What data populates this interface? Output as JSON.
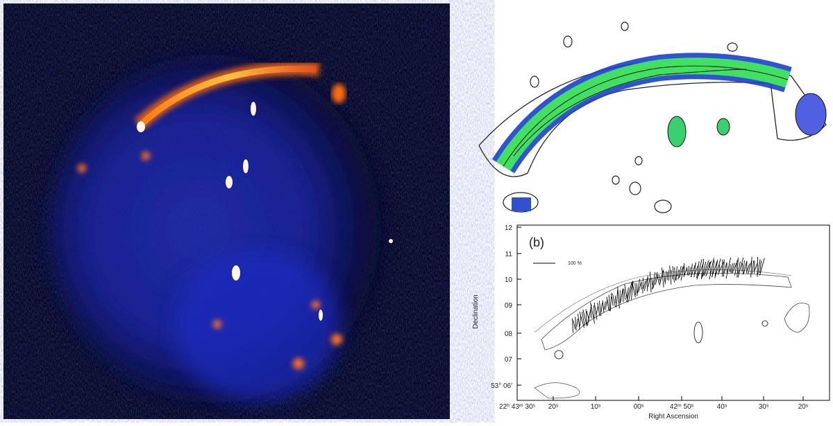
{
  "panels": {
    "b": {
      "label": "(b)",
      "scale_label": "100 %",
      "y_axis_label": "Declination",
      "x_axis_label": "Right Ascension",
      "yticks": [
        "12",
        "11",
        "10",
        "09",
        "08",
        "07",
        "53° 06′"
      ],
      "xticks": [
        "22ʰ 43ᵐ 30ˢ",
        "20ˢ",
        "10ˢ",
        "00ˢ",
        "42ᵐ 50ˢ",
        "40ˢ",
        "30ˢ",
        "20ˢ"
      ]
    }
  }
}
